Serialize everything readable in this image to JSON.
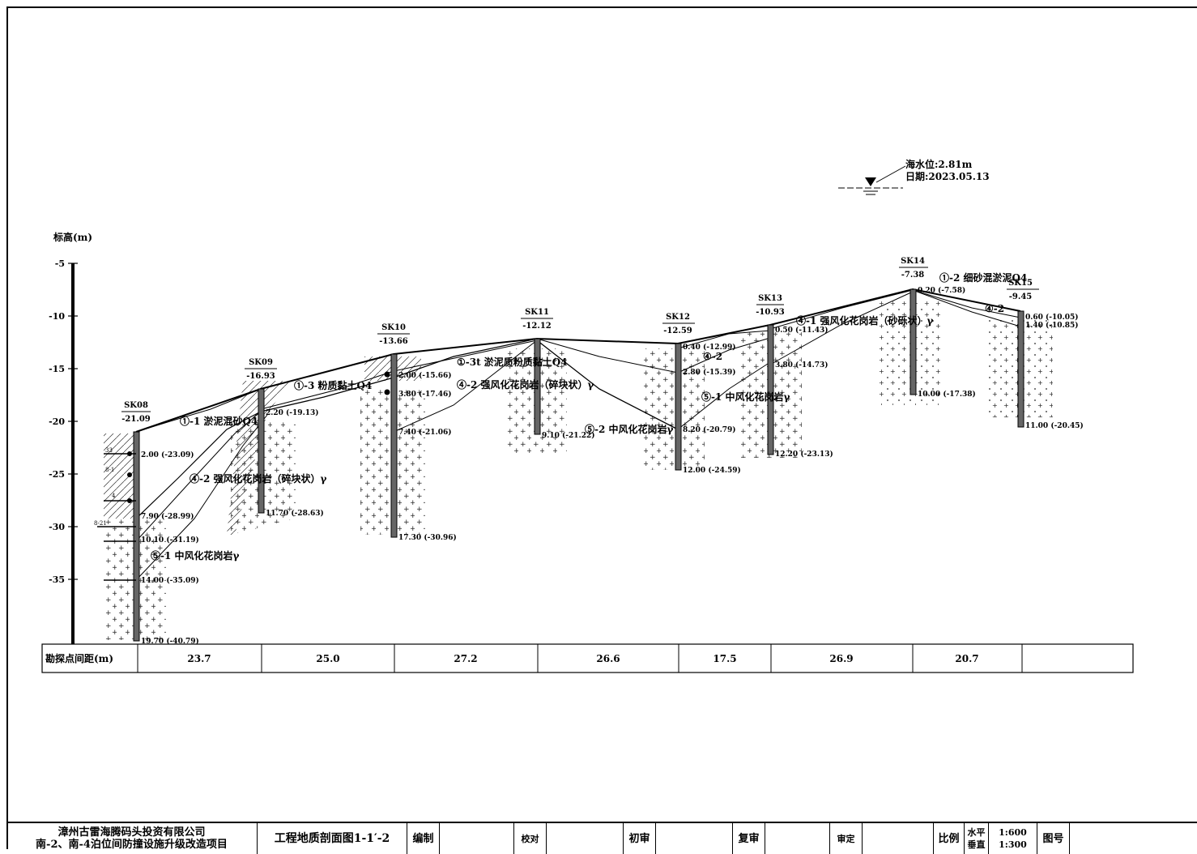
{
  "title_block": {
    "company": "漳州古雷海腾码头投资有限公司",
    "project": "南-2、南-4泊位间防撞设施升级改造项目",
    "drawing_title": "工程地质剖面图1-1′-2",
    "compiled": "编制",
    "checked": "校对",
    "first_review": "初审",
    "second_review": "复审",
    "approved": "审定",
    "scale_label": "比例",
    "horizontal_label": "水平",
    "horizontal_scale": "1:600",
    "vertical_label": "垂直",
    "vertical_scale": "1:300",
    "drawing_no_label": "图号"
  },
  "water_level": {
    "label": "海水位:2.81m",
    "date": "日期:2023.05.13"
  },
  "elevation_axis": {
    "label": "标高(m)",
    "ticks": [
      "-5",
      "-10",
      "-15",
      "-20",
      "-25",
      "-30",
      "-35"
    ]
  },
  "distance_row": {
    "label": "勘探点间距(m)",
    "values": [
      "23.7",
      "25.0",
      "27.2",
      "26.6",
      "17.5",
      "26.9",
      "20.7"
    ]
  },
  "boreholes": [
    {
      "id": "SK08",
      "top": "-21.09",
      "depths": [
        "2.00 (-23.09)",
        "7.90 (-28.99)",
        "10.10 (-31.19)",
        "14.00 (-35.09)",
        "19.70 (-40.79)"
      ]
    },
    {
      "id": "SK09",
      "top": "-16.93",
      "depths": [
        "2.20 (-19.13)",
        "11.70 (-28.63)"
      ]
    },
    {
      "id": "SK10",
      "top": "-13.66",
      "depths": [
        "2.00 (-15.66)",
        "3.80 (-17.46)",
        "7.40 (-21.06)",
        "17.30 (-30.96)"
      ]
    },
    {
      "id": "SK11",
      "top": "-12.12",
      "depths": [
        "9.10 (-21.22)"
      ]
    },
    {
      "id": "SK12",
      "top": "-12.59",
      "depths": [
        "0.40 (-12.99)",
        "2.80 (-15.39)",
        "8.20 (-20.79)",
        "12.00 (-24.59)"
      ]
    },
    {
      "id": "SK13",
      "top": "-10.93",
      "depths": [
        "0.50 (-11.43)",
        "3.80 (-14.73)",
        "12.20 (-23.13)"
      ]
    },
    {
      "id": "SK14",
      "top": "-7.38",
      "depths": [
        "0.20 (-7.58)",
        "10.00 (-17.38)"
      ]
    },
    {
      "id": "SK15",
      "top": "-9.45",
      "depths": [
        "0.60 (-10.05)",
        "1.40 (-10.85)",
        "11.00 (-20.45)"
      ]
    }
  ],
  "layer_labels": [
    "①-1 淤泥混砂Q4",
    "①-3 粉质黏土Q4",
    "①-3t 淤泥质粉质黏土Q4",
    "④-2 强风化花岗岩（碎块状）γ",
    "④-2 强风化花岗岩（碎块状）γ",
    "⑤-1 中风化花岗岩γ",
    "⑤-2 中风化花岗岩γ",
    "⑤-1 中风化花岗岩γ",
    "④-2",
    "④-1 强风化花岗岩（砂砾状）γ",
    "①-2 细砂混淤泥Q4",
    "④-2"
  ],
  "side_marks": [
    "33",
    "8-1",
    "4",
    "8-21"
  ]
}
